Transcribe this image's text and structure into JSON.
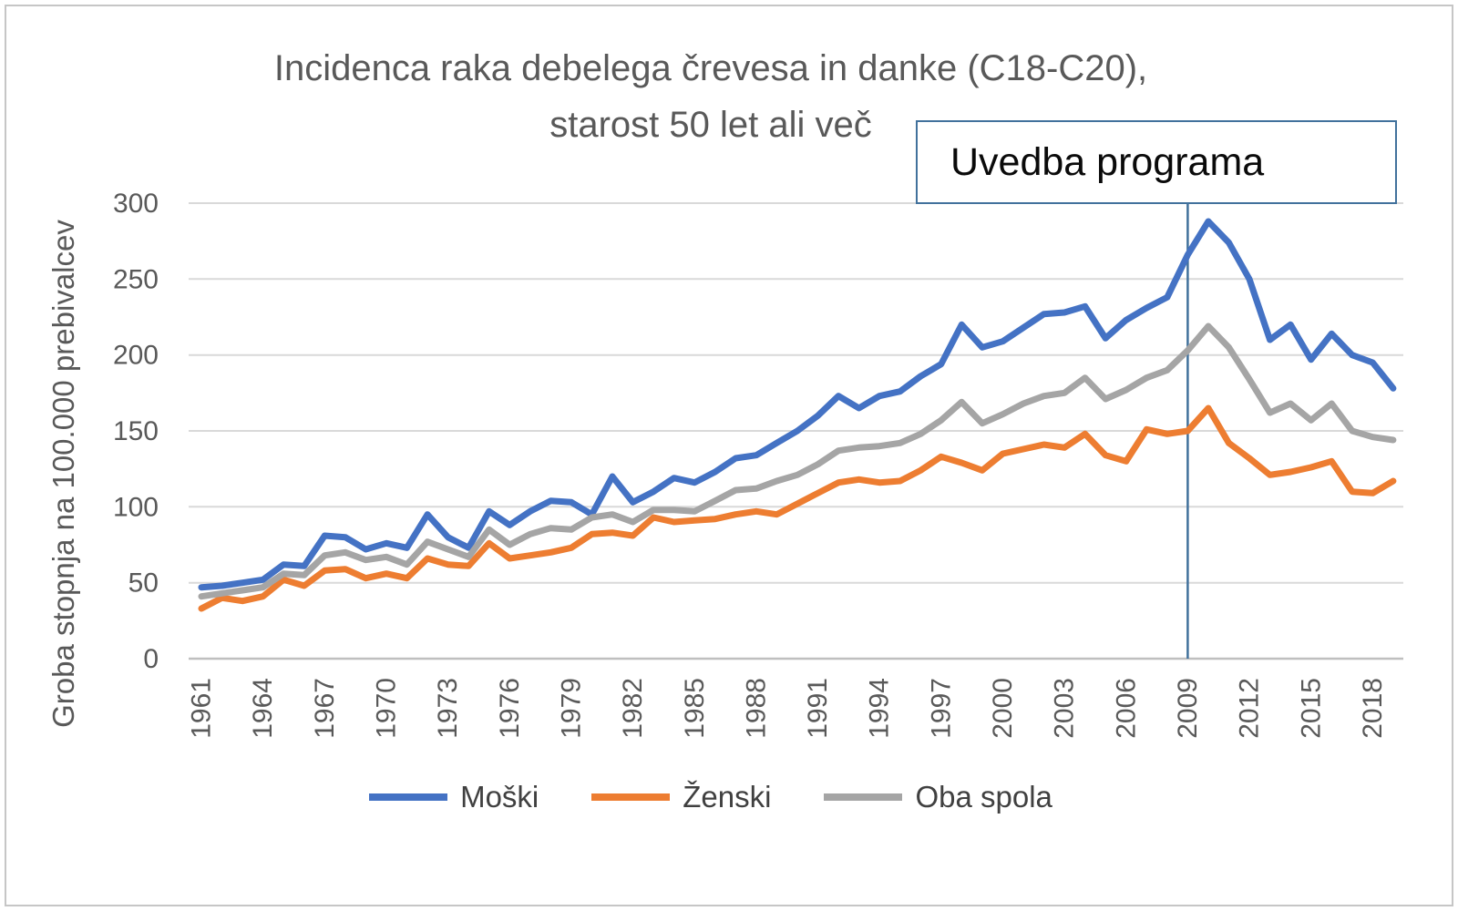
{
  "chart_data": {
    "type": "line",
    "title_line1": "Incidenca raka debelega črevesa in danke (C18-C20),",
    "title_line2": "starost 50 let ali več",
    "ylabel": "Groba stopnja na 100.000 prebivalcev",
    "ylim": [
      0,
      300
    ],
    "y_ticks": [
      0,
      50,
      100,
      150,
      200,
      250,
      300
    ],
    "grid": true,
    "legend_position": "bottom",
    "x": [
      1961,
      1962,
      1963,
      1964,
      1965,
      1966,
      1967,
      1968,
      1969,
      1970,
      1971,
      1972,
      1973,
      1974,
      1975,
      1976,
      1977,
      1978,
      1979,
      1980,
      1981,
      1982,
      1983,
      1984,
      1985,
      1986,
      1987,
      1988,
      1989,
      1990,
      1991,
      1992,
      1993,
      1994,
      1995,
      1996,
      1997,
      1998,
      1999,
      2000,
      2001,
      2002,
      2003,
      2004,
      2005,
      2006,
      2007,
      2008,
      2009,
      2010,
      2011,
      2012,
      2013,
      2014,
      2015,
      2016,
      2017,
      2018,
      2019
    ],
    "x_tick_labels": [
      "1961",
      "1964",
      "1967",
      "1970",
      "1973",
      "1976",
      "1979",
      "1982",
      "1985",
      "1988",
      "1991",
      "1994",
      "1997",
      "2000",
      "2003",
      "2006",
      "2009",
      "2012",
      "2015",
      "2018"
    ],
    "series": [
      {
        "name": "Moški",
        "color": "#4472C4",
        "values": [
          47,
          48,
          50,
          52,
          62,
          61,
          81,
          80,
          72,
          76,
          73,
          95,
          80,
          73,
          97,
          88,
          97,
          104,
          103,
          95,
          120,
          103,
          110,
          119,
          116,
          123,
          132,
          134,
          142,
          150,
          160,
          173,
          165,
          173,
          176,
          186,
          194,
          220,
          205,
          209,
          218,
          227,
          228,
          232,
          211,
          223,
          231,
          238,
          266,
          288,
          274,
          250,
          210,
          220,
          197,
          214,
          200,
          195,
          178
        ]
      },
      {
        "name": "Ženski",
        "color": "#ED7D31",
        "values": [
          33,
          40,
          38,
          41,
          52,
          48,
          58,
          59,
          53,
          56,
          53,
          66,
          62,
          61,
          76,
          66,
          68,
          70,
          73,
          82,
          83,
          81,
          93,
          90,
          91,
          92,
          95,
          97,
          95,
          102,
          109,
          116,
          118,
          116,
          117,
          124,
          133,
          129,
          124,
          135,
          138,
          141,
          139,
          148,
          134,
          130,
          151,
          148,
          150,
          165,
          142,
          132,
          121,
          123,
          126,
          130,
          110,
          109,
          117
        ]
      },
      {
        "name": "Oba spola",
        "color": "#A5A5A5",
        "values": [
          41,
          43,
          45,
          47,
          56,
          55,
          68,
          70,
          65,
          67,
          62,
          77,
          72,
          67,
          85,
          75,
          82,
          86,
          85,
          93,
          95,
          90,
          98,
          98,
          97,
          104,
          111,
          112,
          117,
          121,
          128,
          137,
          139,
          140,
          142,
          148,
          157,
          169,
          155,
          161,
          168,
          173,
          175,
          185,
          171,
          177,
          185,
          190,
          203,
          219,
          205,
          184,
          162,
          168,
          157,
          168,
          150,
          146,
          144
        ]
      }
    ],
    "annotation": {
      "label": "Uvedba programa",
      "year": 2009,
      "line_color": "#41719C",
      "box_border_color": "#41719C"
    },
    "axis_text_color": "#595959",
    "gridline_color": "#D9D9D9"
  }
}
